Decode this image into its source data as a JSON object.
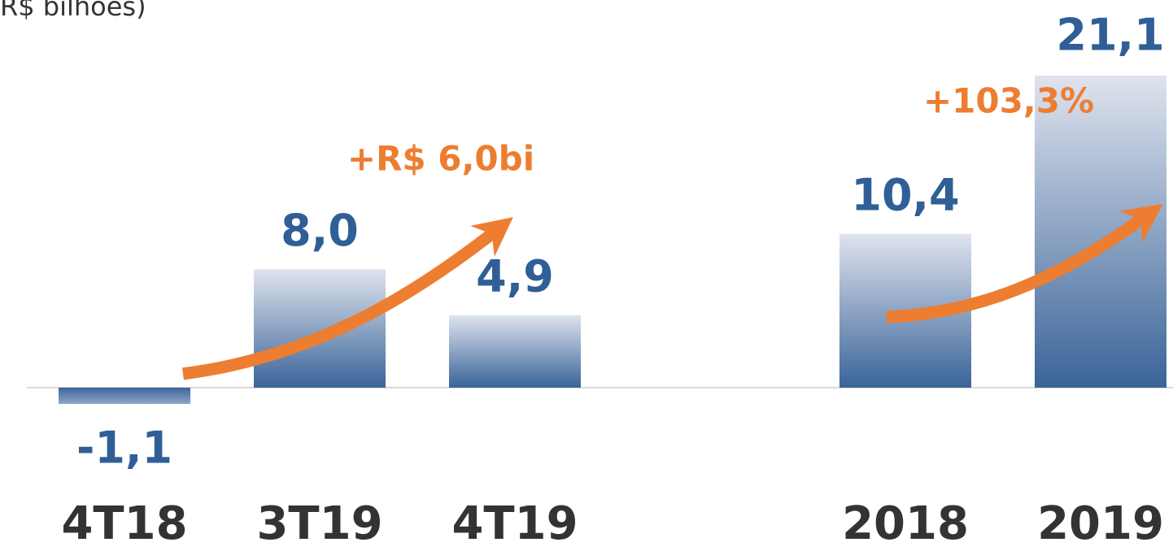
{
  "chart_data": {
    "type": "bar",
    "title": "R$ bilhões)",
    "categories": [
      "4T18",
      "3T19",
      "4T19",
      null,
      "2018",
      "2019"
    ],
    "values": [
      -1.1,
      8.0,
      4.9,
      null,
      10.4,
      21.1
    ],
    "value_labels": [
      "-1,1",
      "8,0",
      "4,9",
      null,
      "10,4",
      "21,1"
    ],
    "color": "#3a6499",
    "annotations": [
      "+R$ 6,0bi",
      "+103,3%"
    ]
  }
}
